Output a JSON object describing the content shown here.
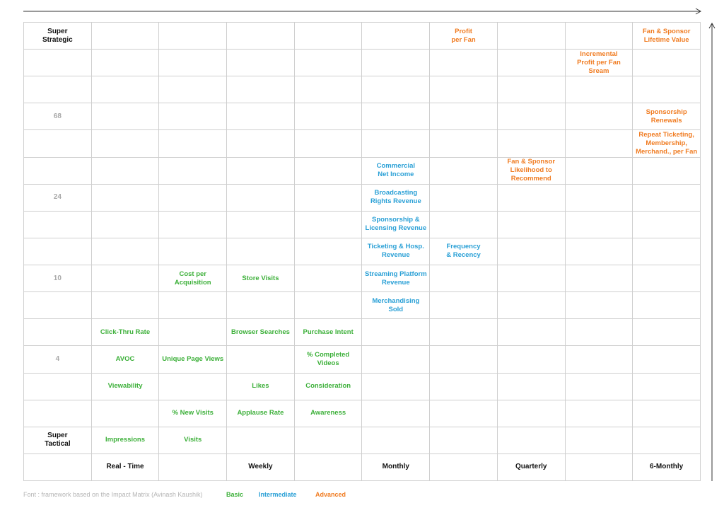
{
  "colors": {
    "basic": "#3db03a",
    "intermediate": "#2aa0d6",
    "advanced": "#f07c22",
    "label": "#111111",
    "number": "#a8a8a8"
  },
  "y_labels": [
    "Super\nStrategic",
    "",
    "",
    "68",
    "",
    "",
    "24",
    "",
    "",
    "10",
    "",
    "",
    "4",
    "",
    "",
    "Super\nTactical"
  ],
  "x_labels": [
    "",
    "Real - Time",
    "",
    "Weekly",
    "",
    "Monthly",
    "",
    "Quarterly",
    "",
    "6-Monthly"
  ],
  "metrics": [
    {
      "row": 0,
      "col": 6,
      "text": "Profit\nper Fan",
      "level": "advanced"
    },
    {
      "row": 0,
      "col": 9,
      "text": "Fan & Sponsor\nLifetime Value",
      "level": "advanced"
    },
    {
      "row": 1,
      "col": 8,
      "text": "Incremental\nProfit per Fan Sream",
      "level": "advanced"
    },
    {
      "row": 3,
      "col": 9,
      "text": "Sponsorship\nRenewals",
      "level": "advanced"
    },
    {
      "row": 4,
      "col": 9,
      "text": "Repeat Ticketing,\nMembership,\nMerchand., per Fan",
      "level": "advanced"
    },
    {
      "row": 5,
      "col": 5,
      "text": "Commercial\nNet Income",
      "level": "intermediate"
    },
    {
      "row": 5,
      "col": 7,
      "text": "Fan & Sponsor\nLikelihood to\nRecommend",
      "level": "advanced"
    },
    {
      "row": 6,
      "col": 5,
      "text": "Broadcasting\nRights Revenue",
      "level": "intermediate"
    },
    {
      "row": 7,
      "col": 5,
      "text": "Sponsorship &\nLicensing Revenue",
      "level": "intermediate"
    },
    {
      "row": 8,
      "col": 5,
      "text": "Ticketing & Hosp.\nRevenue",
      "level": "intermediate"
    },
    {
      "row": 8,
      "col": 6,
      "text": "Frequency\n& Recency",
      "level": "intermediate"
    },
    {
      "row": 9,
      "col": 2,
      "text": "Cost per\nAcquisition",
      "level": "basic"
    },
    {
      "row": 9,
      "col": 3,
      "text": "Store Visits",
      "level": "basic"
    },
    {
      "row": 9,
      "col": 5,
      "text": "Streaming Platform\nRevenue",
      "level": "intermediate"
    },
    {
      "row": 10,
      "col": 5,
      "text": "Merchandising\nSold",
      "level": "intermediate"
    },
    {
      "row": 11,
      "col": 1,
      "text": "Click-Thru Rate",
      "level": "basic"
    },
    {
      "row": 11,
      "col": 3,
      "text": "Browser Searches",
      "level": "basic"
    },
    {
      "row": 11,
      "col": 4,
      "text": "Purchase Intent",
      "level": "basic"
    },
    {
      "row": 12,
      "col": 1,
      "text": "AVOC",
      "level": "basic"
    },
    {
      "row": 12,
      "col": 2,
      "text": "Unique Page Views",
      "level": "basic"
    },
    {
      "row": 12,
      "col": 4,
      "text": "% Completed Videos",
      "level": "basic"
    },
    {
      "row": 13,
      "col": 1,
      "text": "Viewability",
      "level": "basic"
    },
    {
      "row": 13,
      "col": 3,
      "text": "Likes",
      "level": "basic"
    },
    {
      "row": 13,
      "col": 4,
      "text": "Consideration",
      "level": "basic"
    },
    {
      "row": 14,
      "col": 2,
      "text": "% New Visits",
      "level": "basic"
    },
    {
      "row": 14,
      "col": 3,
      "text": "Applause Rate",
      "level": "basic"
    },
    {
      "row": 14,
      "col": 4,
      "text": "Awareness",
      "level": "basic"
    },
    {
      "row": 15,
      "col": 1,
      "text": "Impressions",
      "level": "basic"
    },
    {
      "row": 15,
      "col": 2,
      "text": "Visits",
      "level": "basic"
    }
  ],
  "legend": {
    "source": "Font : framework based on the Impact Matrix (Avinash Kaushik)",
    "basic": "Basic",
    "intermediate": "Intermediate",
    "advanced": "Advanced"
  }
}
